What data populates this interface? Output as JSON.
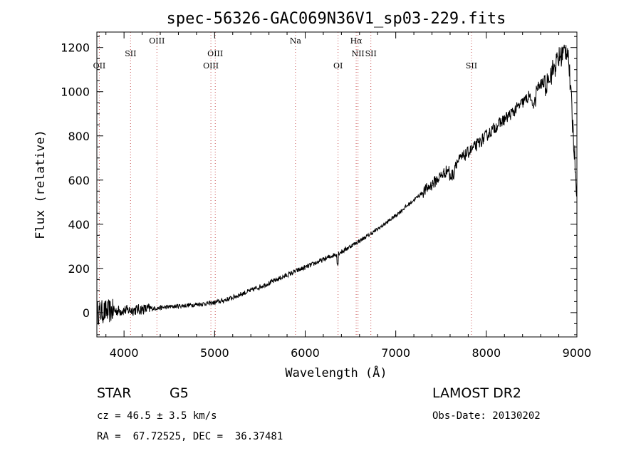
{
  "chart_data": {
    "type": "line",
    "title": "spec-56326-GAC069N36V1_sp03-229.fits",
    "xlabel": "Wavelength (Å)",
    "ylabel": "Flux (relative)",
    "xlim": [
      3700,
      9000
    ],
    "ylim": [
      -110,
      1270
    ],
    "xticks": [
      4000,
      5000,
      6000,
      7000,
      8000,
      9000
    ],
    "xtick_labels": [
      "4000",
      "5000",
      "6000",
      "7000",
      "8000",
      "9000"
    ],
    "yticks": [
      0,
      200,
      400,
      600,
      800,
      1000,
      1200
    ],
    "ytick_labels": [
      "0",
      "200",
      "400",
      "600",
      "800",
      "1000",
      "1200"
    ],
    "grid": false,
    "series": [
      {
        "x": [
          3700,
          3800,
          3900,
          4000,
          4100,
          4200,
          4300,
          4400,
          4500,
          4600,
          4700,
          4800,
          4900,
          5000,
          5100,
          5200,
          5300,
          5400,
          5500,
          5600,
          5700,
          5800,
          5900,
          6000,
          6100,
          6200,
          6300,
          6400,
          6500,
          6600,
          6700,
          6800,
          6900,
          7000,
          7100,
          7200,
          7300,
          7400,
          7500,
          7600,
          7700,
          7800,
          7900,
          8000,
          8100,
          8200,
          8300,
          8400,
          8500,
          8600,
          8700,
          8800,
          8900,
          9000
        ],
        "y": [
          0,
          5,
          8,
          10,
          12,
          15,
          18,
          22,
          26,
          30,
          33,
          37,
          41,
          45,
          55,
          68,
          85,
          100,
          117,
          133,
          152,
          170,
          188,
          205,
          222,
          240,
          258,
          275,
          300,
          325,
          350,
          378,
          408,
          440,
          475,
          510,
          545,
          580,
          620,
          655,
          690,
          725,
          760,
          800,
          840,
          875,
          910,
          950,
          990,
          1030,
          1070,
          1150,
          1200,
          550
        ]
      }
    ],
    "lines": [
      {
        "name": "OII",
        "wave": 3727,
        "row": 2
      },
      {
        "name": "SII",
        "wave": 4072,
        "row": 1
      },
      {
        "name": "OIII",
        "wave": 4363,
        "row": 0
      },
      {
        "name": "OIII",
        "wave": 4959,
        "row": 2
      },
      {
        "name": "OIII",
        "wave": 5007,
        "row": 1
      },
      {
        "name": "Na",
        "wave": 5893,
        "row": 0
      },
      {
        "name": "OI",
        "wave": 6363,
        "row": 2
      },
      {
        "name": "Hα",
        "wave": 6563,
        "row": 0
      },
      {
        "name": "NII",
        "wave": 6583,
        "row": 1
      },
      {
        "name": "SII",
        "wave": 6725,
        "row": 1
      },
      {
        "name": "SII",
        "wave": 7836,
        "row": 2
      }
    ],
    "line_color": "#c85050"
  },
  "info": {
    "object_type": "STAR",
    "subclass": "G5",
    "survey": "LAMOST DR2",
    "cz": "cz = 46.5 ± 3.5 km/s",
    "obs_date": "Obs-Date: 20130202",
    "coords": "RA =  67.72525, DEC =  36.37481"
  }
}
